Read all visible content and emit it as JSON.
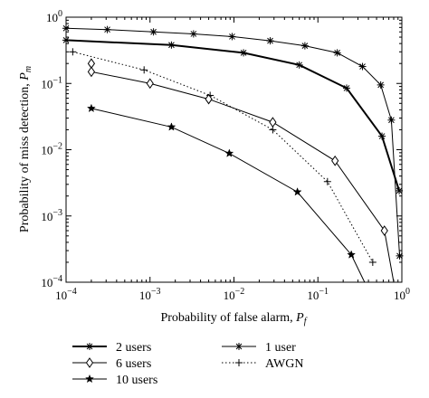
{
  "chart_data": {
    "type": "line",
    "xscale": "log",
    "yscale": "log",
    "xlim": [
      0.0001,
      1
    ],
    "ylim": [
      0.0001,
      1
    ],
    "grid": false,
    "xlabel": "Probability of false alarm, ",
    "xlabel_symbol": "P",
    "xlabel_sub": "f",
    "ylabel": "Probability of miss detection, ",
    "ylabel_symbol": "P",
    "ylabel_sub": "m",
    "x_ticks": [
      {
        "value": 0.0001,
        "base": "10",
        "exp": "−4"
      },
      {
        "value": 0.001,
        "base": "10",
        "exp": "−3"
      },
      {
        "value": 0.01,
        "base": "10",
        "exp": "−2"
      },
      {
        "value": 0.1,
        "base": "10",
        "exp": "−1"
      },
      {
        "value": 1,
        "base": "10",
        "exp": "0"
      }
    ],
    "y_ticks": [
      {
        "value": 0.0001,
        "base": "10",
        "exp": "−4"
      },
      {
        "value": 0.001,
        "base": "10",
        "exp": "−3"
      },
      {
        "value": 0.01,
        "base": "10",
        "exp": "−2"
      },
      {
        "value": 0.1,
        "base": "10",
        "exp": "−1"
      },
      {
        "value": 1,
        "base": "10",
        "exp": "0"
      }
    ],
    "legend_placement": "bottom",
    "series": [
      {
        "name": "1 user",
        "marker": "asterisk",
        "line": "solid",
        "line_width": 1,
        "x": [
          0.0001,
          0.00031,
          0.0011,
          0.0033,
          0.0095,
          0.027,
          0.07,
          0.17,
          0.34,
          0.56,
          0.75,
          0.94
        ],
        "y": [
          0.68,
          0.65,
          0.6,
          0.56,
          0.51,
          0.44,
          0.37,
          0.29,
          0.18,
          0.095,
          0.028,
          0.00025
        ]
      },
      {
        "name": "2 users",
        "marker": "asterisk",
        "line": "solid",
        "line_width": 2,
        "x": [
          0.0001,
          0.0018,
          0.013,
          0.06,
          0.22,
          0.58,
          0.93
        ],
        "y": [
          0.45,
          0.38,
          0.29,
          0.19,
          0.085,
          0.016,
          0.0024
        ]
      },
      {
        "name": "AWGN",
        "marker": "plus",
        "line": "dotted",
        "line_width": 1,
        "x": [
          0.00012,
          0.00085,
          0.0052,
          0.029,
          0.13,
          0.45
        ],
        "y": [
          0.3,
          0.16,
          0.066,
          0.02,
          0.0033,
          0.0002
        ]
      },
      {
        "name": "6 users",
        "marker": "diamond",
        "line": "solid",
        "line_width": 1,
        "x": [
          0.0002,
          0.0002,
          0.001,
          0.005,
          0.029,
          0.16,
          0.62,
          0.8
        ],
        "y": [
          0.2,
          0.15,
          0.1,
          0.058,
          0.026,
          0.0068,
          0.0006,
          0.0001
        ]
      },
      {
        "name": "10 users",
        "marker": "star",
        "line": "solid",
        "line_width": 1,
        "x": [
          0.0002,
          0.0018,
          0.0088,
          0.057,
          0.25,
          0.36
        ],
        "y": [
          0.042,
          0.022,
          0.0088,
          0.0023,
          0.00026,
          0.0001
        ]
      }
    ],
    "legend": [
      {
        "series": 1,
        "label": "2 users"
      },
      {
        "series": 3,
        "label": "6 users"
      },
      {
        "series": 4,
        "label": "10 users"
      },
      {
        "series": 0,
        "label": "1 user"
      },
      {
        "series": 2,
        "label": "AWGN"
      }
    ]
  }
}
